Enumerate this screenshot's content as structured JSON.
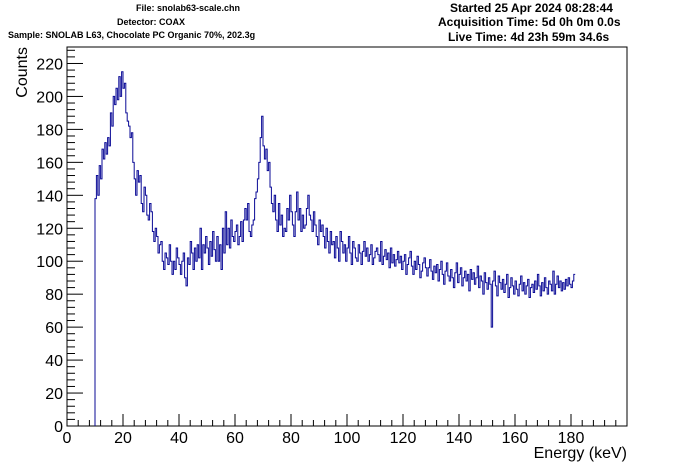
{
  "header": {
    "file_line": "File: snolab63-scale.chn",
    "detector_line": "Detector: COAX",
    "sample_line": "Sample: SNOLAB L63, Chocolate PC Organic 70%, 202.3g",
    "started_line": "Started 25 Apr 2024 08:28:44",
    "acquisition_line": "Acquisition Time: 5d 0h 0m 0.0s",
    "live_line": "Live Time: 4d 23h 59m 34.6s"
  },
  "chart_data": {
    "type": "line",
    "style": "histogram step",
    "title": "",
    "xlabel": "Energy (keV)",
    "ylabel": "Counts",
    "xlim": [
      0,
      200
    ],
    "ylim": [
      0,
      230
    ],
    "x_ticks": [
      0,
      20,
      40,
      60,
      80,
      100,
      120,
      140,
      160,
      180
    ],
    "y_ticks": [
      0,
      20,
      40,
      60,
      80,
      100,
      120,
      140,
      160,
      180,
      200,
      220
    ],
    "line_color": "#0a0a96",
    "grid": false,
    "bin_width_keV": 0.5,
    "series": [
      {
        "x_start": 10,
        "values": [
          138,
          152,
          140,
          158,
          150,
          168,
          162,
          172,
          165,
          175,
          170,
          190,
          182,
          200,
          195,
          205,
          198,
          212,
          200,
          215,
          205,
          208,
          190,
          185,
          182,
          175,
          178,
          160,
          150,
          140,
          155,
          148,
          152,
          135,
          130,
          145,
          140,
          128,
          125,
          135,
          130,
          118,
          112,
          120,
          115,
          105,
          110,
          112,
          100,
          95,
          105,
          102,
          98,
          110,
          100,
          92,
          100,
          95,
          108,
          102,
          98,
          92,
          100,
          105,
          90,
          85,
          102,
          98,
          112,
          105,
          95,
          108,
          100,
          110,
          102,
          120,
          95,
          110,
          105,
          115,
          108,
          98,
          112,
          103,
          118,
          107,
          100,
          115,
          100,
          110,
          95,
          120,
          105,
          130,
          110,
          120,
          108,
          125,
          115,
          112,
          118,
          122,
          110,
          115,
          124,
          112,
          125,
          132,
          125,
          135,
          118,
          115,
          122,
          125,
          138,
          142,
          150,
          160,
          175,
          188,
          170,
          162,
          168,
          155,
          160,
          145,
          135,
          130,
          140,
          125,
          118,
          135,
          122,
          128,
          115,
          120,
          118,
          132,
          125,
          140,
          130,
          122,
          115,
          130,
          142,
          125,
          132,
          118,
          128,
          120,
          122,
          132,
          140,
          128,
          125,
          118,
          130,
          122,
          115,
          110,
          125,
          118,
          122,
          115,
          108,
          120,
          112,
          105,
          118,
          110,
          112,
          102,
          115,
          108,
          100,
          118,
          112,
          105,
          110,
          100,
          108,
          115,
          105,
          98,
          112,
          108,
          102,
          100,
          110,
          105,
          98,
          106,
          112,
          103,
          108,
          100,
          104,
          110,
          98,
          102,
          106,
          108,
          104,
          100,
          112,
          98,
          103,
          107,
          101,
          105,
          96,
          108,
          99,
          104,
          97,
          101,
          106,
          99,
          103,
          95,
          100,
          104,
          92,
          98,
          102,
          106,
          97,
          92,
          100,
          95,
          103,
          98,
          90,
          94,
          99,
          102,
          96,
          91,
          96,
          101,
          94,
          89,
          97,
          93,
          98,
          88,
          95,
          100,
          92,
          86,
          94,
          99,
          91,
          88,
          95,
          90,
          84,
          93,
          99,
          87,
          92,
          96,
          85,
          90,
          94,
          88,
          92,
          82,
          95,
          89,
          93,
          86,
          90,
          97,
          84,
          91,
          88,
          80,
          93,
          87,
          83,
          90,
          86,
          60,
          88,
          94,
          85,
          79,
          91,
          87,
          83,
          89,
          81,
          86,
          92,
          78,
          84,
          90,
          85,
          80,
          88,
          83,
          79,
          86,
          91,
          82,
          87,
          80,
          85,
          89,
          78,
          84,
          86,
          81,
          88,
          83,
          92,
          85,
          79,
          87,
          82,
          90,
          84,
          80,
          88,
          86,
          82,
          94,
          80,
          86,
          91,
          84,
          88,
          82,
          87,
          83,
          89,
          85,
          90,
          86,
          84,
          88,
          92
        ]
      }
    ]
  }
}
